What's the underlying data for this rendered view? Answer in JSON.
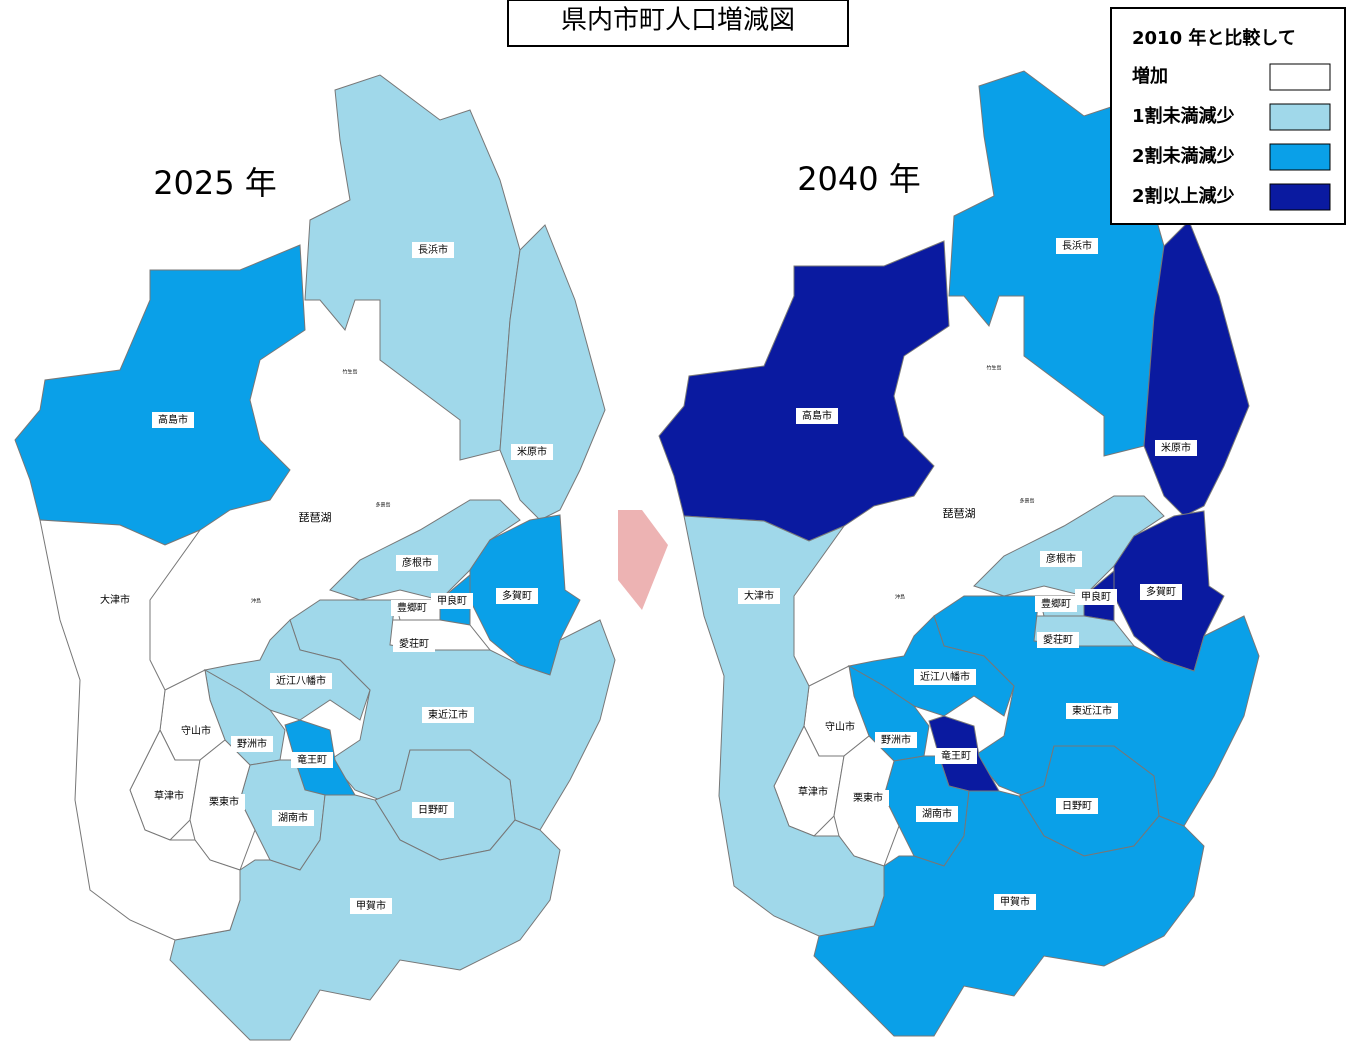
{
  "title": "県内市町人口増減図",
  "legend": {
    "heading": "2010 年と比較して",
    "items": [
      {
        "label": "増加",
        "color": "#ffffff"
      },
      {
        "label": "1割未満減少",
        "color": "#a0d8ea"
      },
      {
        "label": "2割未満減少",
        "color": "#0aa0e8"
      },
      {
        "label": "2割以上減少",
        "color": "#0a1aa0"
      }
    ]
  },
  "lake": "琵琶湖",
  "islands": [
    "竹生島",
    "多景島",
    "沖島"
  ],
  "maps": [
    {
      "year": "2025 年",
      "municipalities": [
        {
          "name": "高島市",
          "color": "#0aa0e8"
        },
        {
          "name": "長浜市",
          "color": "#a0d8ea"
        },
        {
          "name": "米原市",
          "color": "#a0d8ea"
        },
        {
          "name": "彦根市",
          "color": "#a0d8ea"
        },
        {
          "name": "多賀町",
          "color": "#0aa0e8"
        },
        {
          "name": "甲良町",
          "color": "#0aa0e8"
        },
        {
          "name": "豊郷町",
          "color": "#ffffff"
        },
        {
          "name": "愛荘町",
          "color": "#ffffff"
        },
        {
          "name": "東近江市",
          "color": "#a0d8ea"
        },
        {
          "name": "近江八幡市",
          "color": "#a0d8ea"
        },
        {
          "name": "野洲市",
          "color": "#a0d8ea"
        },
        {
          "name": "竜王町",
          "color": "#0aa0e8"
        },
        {
          "name": "日野町",
          "color": "#a0d8ea"
        },
        {
          "name": "湖南市",
          "color": "#a0d8ea"
        },
        {
          "name": "甲賀市",
          "color": "#a0d8ea"
        },
        {
          "name": "守山市",
          "color": "#ffffff"
        },
        {
          "name": "草津市",
          "color": "#ffffff"
        },
        {
          "name": "栗東市",
          "color": "#ffffff"
        },
        {
          "name": "大津市",
          "color": "#ffffff"
        }
      ]
    },
    {
      "year": "2040 年",
      "municipalities": [
        {
          "name": "高島市",
          "color": "#0a1aa0"
        },
        {
          "name": "長浜市",
          "color": "#0aa0e8"
        },
        {
          "name": "米原市",
          "color": "#0a1aa0"
        },
        {
          "name": "彦根市",
          "color": "#a0d8ea"
        },
        {
          "name": "多賀町",
          "color": "#0a1aa0"
        },
        {
          "name": "甲良町",
          "color": "#0a1aa0"
        },
        {
          "name": "豊郷町",
          "color": "#a0d8ea"
        },
        {
          "name": "愛荘町",
          "color": "#a0d8ea"
        },
        {
          "name": "東近江市",
          "color": "#0aa0e8"
        },
        {
          "name": "近江八幡市",
          "color": "#0aa0e8"
        },
        {
          "name": "野洲市",
          "color": "#0aa0e8"
        },
        {
          "name": "竜王町",
          "color": "#0a1aa0"
        },
        {
          "name": "日野町",
          "color": "#0aa0e8"
        },
        {
          "name": "湖南市",
          "color": "#0aa0e8"
        },
        {
          "name": "甲賀市",
          "color": "#0aa0e8"
        },
        {
          "name": "守山市",
          "color": "#ffffff"
        },
        {
          "name": "草津市",
          "color": "#ffffff"
        },
        {
          "name": "栗東市",
          "color": "#ffffff"
        },
        {
          "name": "大津市",
          "color": "#a0d8ea"
        }
      ]
    }
  ]
}
